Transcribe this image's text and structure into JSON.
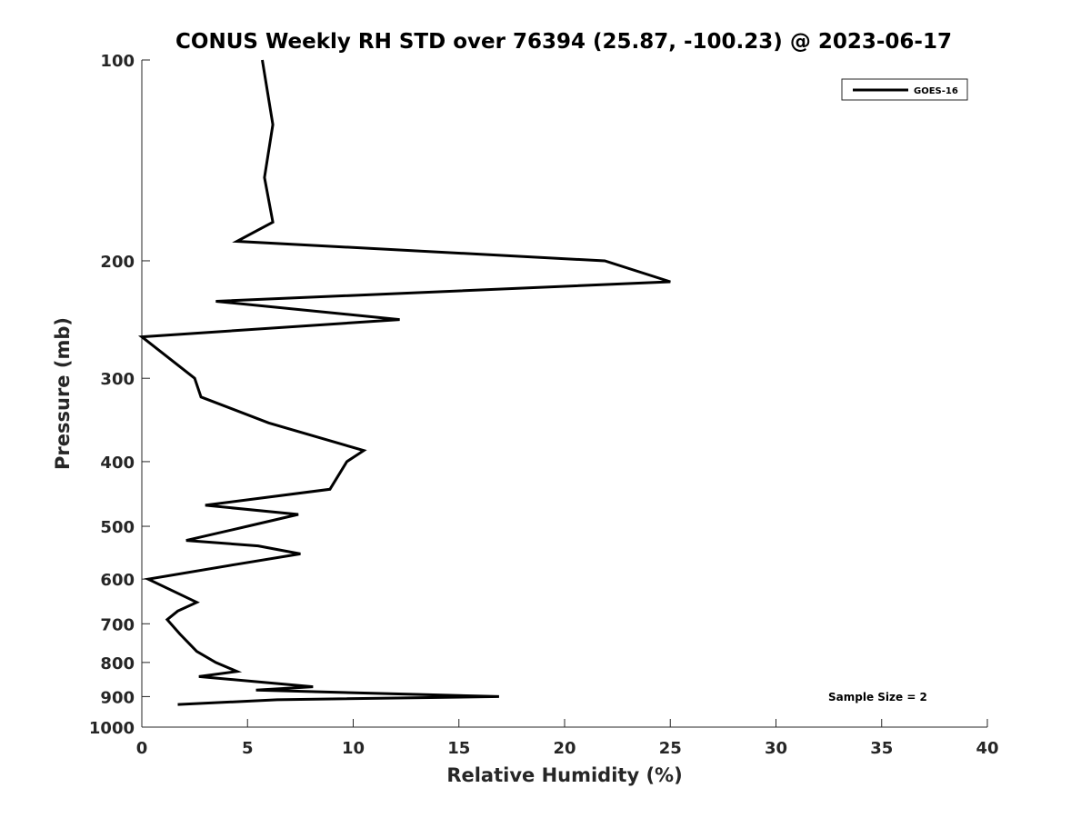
{
  "chart_data": {
    "type": "line",
    "title": "CONUS Weekly RH STD over 76394 (25.87, -100.23) @ 2023-06-17",
    "xlabel": "Relative Humidity (%)",
    "ylabel": "Pressure (mb)",
    "xlim": [
      0,
      40
    ],
    "ylim": [
      100,
      1000
    ],
    "y_scale": "log",
    "y_reversed": true,
    "x_ticks": [
      "0",
      "5",
      "10",
      "15",
      "20",
      "25",
      "30",
      "35",
      "40"
    ],
    "y_ticks": [
      "100",
      "200",
      "300",
      "400",
      "500",
      "600",
      "700",
      "800",
      "900",
      "1000"
    ],
    "grid": false,
    "legend_position": "top-right",
    "series": [
      {
        "name": "GOES-16",
        "color": "#000000",
        "points": [
          {
            "x": 5.7,
            "y": 100
          },
          {
            "x": 6.2,
            "y": 125
          },
          {
            "x": 5.8,
            "y": 150
          },
          {
            "x": 6.2,
            "y": 175
          },
          {
            "x": 4.5,
            "y": 187
          },
          {
            "x": 21.9,
            "y": 200
          },
          {
            "x": 25.0,
            "y": 215
          },
          {
            "x": 3.5,
            "y": 230
          },
          {
            "x": 12.2,
            "y": 245
          },
          {
            "x": 0.0,
            "y": 260
          },
          {
            "x": 2.5,
            "y": 300
          },
          {
            "x": 2.8,
            "y": 320
          },
          {
            "x": 6.0,
            "y": 350
          },
          {
            "x": 10.5,
            "y": 385
          },
          {
            "x": 9.7,
            "y": 400
          },
          {
            "x": 8.9,
            "y": 440
          },
          {
            "x": 3.0,
            "y": 465
          },
          {
            "x": 7.4,
            "y": 480
          },
          {
            "x": 5.0,
            "y": 500
          },
          {
            "x": 2.1,
            "y": 525
          },
          {
            "x": 5.5,
            "y": 535
          },
          {
            "x": 7.5,
            "y": 550
          },
          {
            "x": 4.5,
            "y": 570
          },
          {
            "x": 0.3,
            "y": 600
          },
          {
            "x": 2.6,
            "y": 650
          },
          {
            "x": 1.7,
            "y": 670
          },
          {
            "x": 1.2,
            "y": 690
          },
          {
            "x": 1.8,
            "y": 725
          },
          {
            "x": 2.6,
            "y": 770
          },
          {
            "x": 3.5,
            "y": 800
          },
          {
            "x": 4.5,
            "y": 825
          },
          {
            "x": 2.7,
            "y": 840
          },
          {
            "x": 8.1,
            "y": 870
          },
          {
            "x": 5.4,
            "y": 880
          },
          {
            "x": 16.9,
            "y": 900
          },
          {
            "x": 6.4,
            "y": 910
          },
          {
            "x": 1.7,
            "y": 925
          }
        ]
      }
    ],
    "annotations": [
      {
        "text": "Sample Size = 2",
        "x": 32.5,
        "y": 900
      }
    ]
  }
}
